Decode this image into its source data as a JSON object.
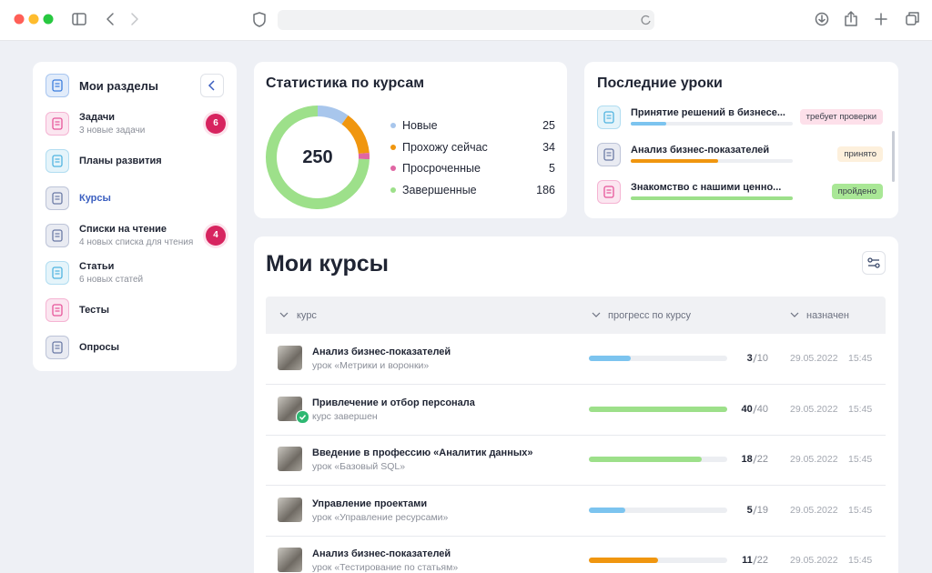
{
  "sidebar": {
    "title": "Мои разделы",
    "items": [
      {
        "label": "Задачи",
        "sub": "3 новые задачи",
        "badge": 6,
        "color": "#e7559a"
      },
      {
        "label": "Планы развития",
        "color": "#4fb3e0"
      },
      {
        "label": "Курсы",
        "color": "#6b7aa6",
        "active": true
      },
      {
        "label": "Списки на чтение",
        "sub": "4 новых списка для чтения",
        "badge": 4,
        "color": "#6b7aa6"
      },
      {
        "label": "Статьи",
        "sub": "6 новых статей",
        "color": "#4fb3e0"
      },
      {
        "label": "Тесты",
        "color": "#e7559a"
      },
      {
        "label": "Опросы",
        "color": "#6b7aa6"
      }
    ]
  },
  "stats": {
    "title": "Статистика по курсам",
    "total": 250,
    "items": [
      {
        "name": "Новые",
        "value": 25,
        "color": "#a8c6ec"
      },
      {
        "name": "Прохожу сейчас",
        "value": 34,
        "color": "#f0960f"
      },
      {
        "name": "Просроченные",
        "value": 5,
        "color": "#e066a3"
      },
      {
        "name": "Завершенные",
        "value": 186,
        "color": "#9de08a"
      }
    ]
  },
  "recent": {
    "title": "Последние уроки",
    "items": [
      {
        "title": "Принятие решений в бизнесе...",
        "status": "требует проверки",
        "progress": 22,
        "color": "#7cc4ef",
        "status_bg": "#fde0ea",
        "icon": "#4fb3e0"
      },
      {
        "title": "Анализ бизнес-показателей",
        "status": "принято",
        "progress": 54,
        "color": "#f0960f",
        "status_bg": "#fdf0dc",
        "icon": "#6b7aa6"
      },
      {
        "title": "Знакомство с нашими ценно...",
        "status": "пройдено",
        "progress": 100,
        "color": "#9de08a",
        "status_bg": "#a9e796",
        "icon": "#e7559a"
      }
    ]
  },
  "courses": {
    "title": "Мои курсы",
    "columns": [
      "курс",
      "прогресс по курсу",
      "назначен"
    ],
    "rows": [
      {
        "name": "Анализ бизнес-показателей",
        "sub": "урок «Метрики и воронки»",
        "done": 3,
        "total": 10,
        "color": "#7cc4ef",
        "date": "29.05.2022",
        "time": "15:45"
      },
      {
        "name": "Привлечение и отбор персонала",
        "sub": "курс завершен",
        "done": 40,
        "total": 40,
        "color": "#9de08a",
        "date": "29.05.2022",
        "time": "15:45",
        "completed": true
      },
      {
        "name": "Введение в профессию «Аналитик данных»",
        "sub": "урок «Базовый SQL»",
        "done": 18,
        "total": 22,
        "color": "#9de08a",
        "date": "29.05.2022",
        "time": "15:45"
      },
      {
        "name": "Управление проектами",
        "sub": "урок «Управление ресурсами»",
        "done": 5,
        "total": 19,
        "color": "#7cc4ef",
        "date": "29.05.2022",
        "time": "15:45"
      },
      {
        "name": "Анализ бизнес-показателей",
        "sub": "урок «Тестирование по статьям»",
        "done": 11,
        "total": 22,
        "color": "#f0960f",
        "date": "29.05.2022",
        "time": "15:45"
      }
    ]
  }
}
